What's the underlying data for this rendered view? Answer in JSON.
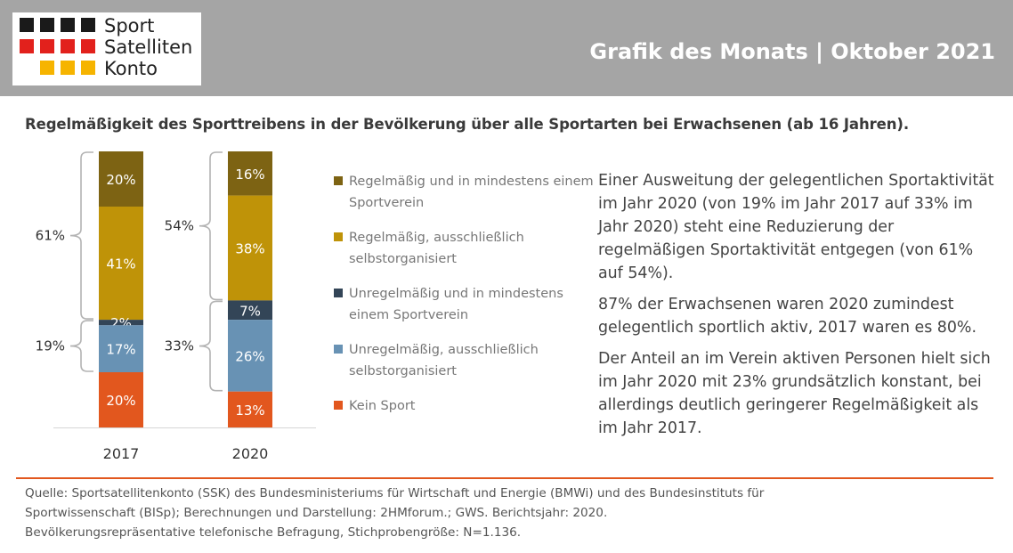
{
  "logo": {
    "line1": "Sport",
    "line2": "Satelliten",
    "line3": "Konto",
    "square_rows": [
      [
        "#1a1a1a",
        "#1a1a1a",
        "#1a1a1a",
        "#1a1a1a"
      ],
      [
        "#e2211c",
        "#e2211c",
        "#e2211c",
        "#e2211c"
      ],
      [
        "#f6b400",
        "#f6b400",
        "#f6b400"
      ]
    ]
  },
  "header": {
    "title": "Grafik des Monats | Oktober 2021"
  },
  "chart_data": {
    "type": "bar",
    "stacked": true,
    "title": "Regelmäßigkeit des Sporttreibens in der Bevölkerung über alle Sportarten bei Erwachsenen (ab 16 Jahren).",
    "categories": [
      "2017",
      "2020"
    ],
    "series": [
      {
        "name": "Regelmäßig und in mindestens einem Sportverein",
        "color": "#7d6313",
        "values": [
          20,
          16
        ],
        "labels": [
          "20%",
          "16%"
        ]
      },
      {
        "name": "Regelmäßig, ausschließlich selbstorganisiert",
        "color": "#bf9308",
        "values": [
          41,
          38
        ],
        "labels": [
          "41%",
          "38%"
        ]
      },
      {
        "name": "Unregelmäßig und in mindestens einem Sportverein",
        "color": "#334557",
        "values": [
          2,
          7
        ],
        "labels": [
          "2%",
          "7%"
        ]
      },
      {
        "name": "Unregelmäßig, ausschließlich selbstorganisiert",
        "color": "#6892b4",
        "values": [
          17,
          26
        ],
        "labels": [
          "17%",
          "26%"
        ]
      },
      {
        "name": "Kein Sport",
        "color": "#e2571e",
        "values": [
          20,
          13
        ],
        "labels": [
          "20%",
          "13%"
        ]
      }
    ],
    "brackets": [
      {
        "category": "2017",
        "from_series": 0,
        "to_series": 1,
        "label": "61%"
      },
      {
        "category": "2017",
        "from_series": 2,
        "to_series": 3,
        "label": "19%"
      },
      {
        "category": "2020",
        "from_series": 0,
        "to_series": 1,
        "label": "54%"
      },
      {
        "category": "2020",
        "from_series": 2,
        "to_series": 3,
        "label": "33%"
      }
    ],
    "ylim": [
      0,
      100
    ],
    "grid": false,
    "legend": "right"
  },
  "text": {
    "paragraphs": [
      "Einer Ausweitung der gelegentlichen Sportaktivität im Jahr 2020 (von 19% im Jahr 2017 auf 33% im Jahr 2020) steht eine Reduzierung der regelmäßigen Sportaktivität entgegen (von 61% auf 54%).",
      "87% der Erwachsenen waren 2020 zumindest gelegentlich sportlich aktiv, 2017 waren es 80%.",
      "Der Anteil an im Verein aktiven Personen hielt sich im Jahr 2020 mit 23% grundsätzlich konstant, bei allerdings deutlich geringerer Regelmäßigkeit als im Jahr 2017."
    ]
  },
  "source": {
    "lines": [
      "Quelle: Sportsatellitenkonto (SSK) des Bundesministeriums für Wirtschaft und Energie (BMWi) und des Bundesinstituts für",
      "Sportwissenschaft (BISp); Berechnungen und Darstellung: 2HMforum.; GWS. Berichtsjahr: 2020.",
      "Bevölkerungsrepräsentative telefonische Befragung, Stichprobengröße: N=1.136."
    ]
  }
}
